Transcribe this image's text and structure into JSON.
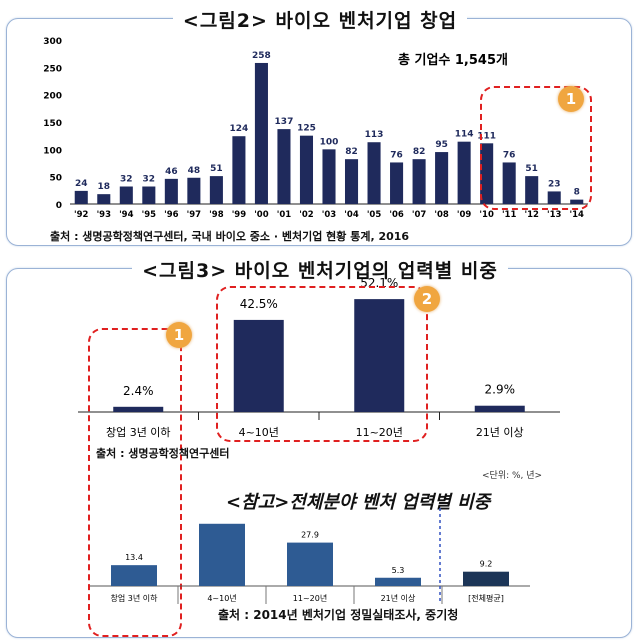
{
  "figure2": {
    "title": "<그림2> 바이오 벤처기업 창업",
    "total_label": "총 기업수 1,545개",
    "source": "출처 : 생명공학정책연구센터, 국내 바이오 중소 · 벤처기업 현황 통계, 2016",
    "callout": "1"
  },
  "figure3": {
    "title": "<그림3> 바이오 벤처기업의 업력별 비중",
    "source": "출처 : 생명공학정책연구센터",
    "unit_note": "<단위: %, 년>",
    "callout_1": "1",
    "callout_2": "2"
  },
  "reference": {
    "title": "<참고>전체분야 벤처 업력별 비중",
    "source": "출처 : 2014년 벤처기업 정밀실태조사, 중기청"
  },
  "chart_data": [
    {
      "type": "bar",
      "categories": [
        "'92",
        "'93",
        "'94",
        "'95",
        "'96",
        "'97",
        "'98",
        "'99",
        "'00",
        "'01",
        "'02",
        "'03",
        "'04",
        "'05",
        "'06",
        "'07",
        "'08",
        "'09",
        "'10",
        "'11",
        "'12",
        "'13",
        "'14"
      ],
      "values": [
        24,
        18,
        32,
        32,
        46,
        48,
        51,
        124,
        258,
        137,
        125,
        100,
        82,
        113,
        76,
        82,
        95,
        114,
        111,
        76,
        51,
        23,
        8
      ],
      "yticks": [
        "0",
        "50",
        "100",
        "150",
        "200",
        "250",
        "300"
      ],
      "ylim": [
        0,
        300
      ],
      "color": "#1f2a5c"
    },
    {
      "type": "bar",
      "categories": [
        "창업 3년 이하",
        "4~10년",
        "11~20년",
        "21년 이상"
      ],
      "values": [
        2.4,
        42.5,
        52.1,
        2.9
      ],
      "value_labels": [
        "2.4%",
        "42.5%",
        "52.1%",
        "2.9%"
      ],
      "ylim": [
        0,
        60
      ],
      "color": "#1f2a5c"
    },
    {
      "type": "bar",
      "categories": [
        "창업 3년 이하",
        "4~10년",
        "11~20년",
        "21년 이상",
        "[전체평균]"
      ],
      "values": [
        13.4,
        40.0,
        27.9,
        5.3,
        9.2
      ],
      "value_labels": [
        "13.4",
        "",
        "27.9",
        "5.3",
        "9.2"
      ],
      "ylim": [
        0,
        45
      ],
      "colors": [
        "#2e5b93",
        "#2e5b93",
        "#2e5b93",
        "#2e5b93",
        "#1c3557"
      ]
    }
  ]
}
